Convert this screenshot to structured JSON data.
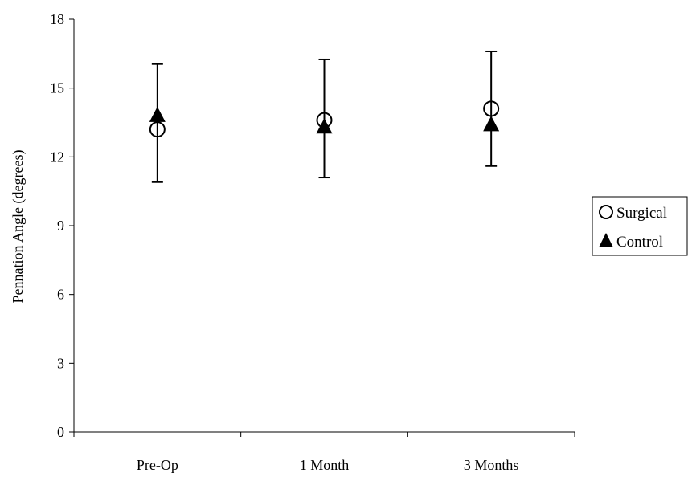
{
  "chart_data": {
    "type": "scatter",
    "title": "",
    "xlabel": "",
    "ylabel": "Pennation Angle (degrees)",
    "categories": [
      "Pre-Op",
      "1 Month",
      "3 Months"
    ],
    "ylim": [
      0,
      18
    ],
    "yticks": [
      0,
      3,
      6,
      9,
      12,
      15,
      18
    ],
    "grid": false,
    "legend_position": "right",
    "series": [
      {
        "name": "Surgical",
        "marker": "open-circle",
        "color": "#000000",
        "values": [
          13.2,
          13.6,
          14.1
        ],
        "error_low": [
          10.9,
          11.1,
          11.6
        ],
        "error_high": [
          16.05,
          16.25,
          16.6
        ]
      },
      {
        "name": "Control",
        "marker": "filled-triangle",
        "color": "#000000",
        "values": [
          13.8,
          13.3,
          13.4
        ]
      }
    ]
  }
}
